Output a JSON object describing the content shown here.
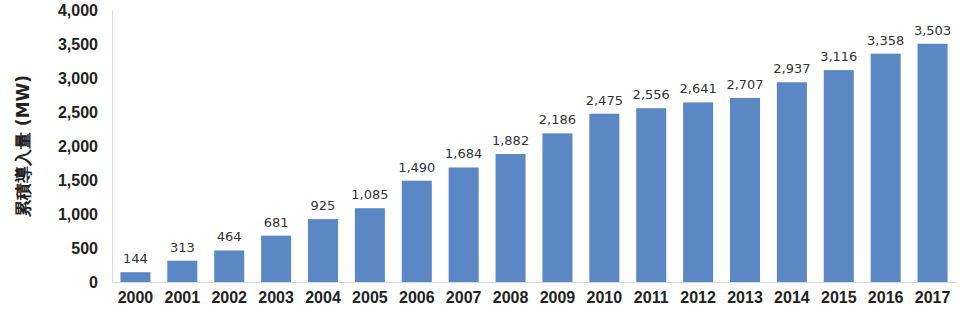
{
  "chart_data": {
    "type": "bar",
    "y_label": "累積導入量 (MW)",
    "categories": [
      "2000",
      "2001",
      "2002",
      "2003",
      "2004",
      "2005",
      "2006",
      "2007",
      "2008",
      "2009",
      "2010",
      "2011",
      "2012",
      "2013",
      "2014",
      "2015",
      "2016",
      "2017"
    ],
    "values": [
      144,
      313,
      464,
      681,
      925,
      1085,
      1490,
      1684,
      1882,
      2186,
      2475,
      2556,
      2641,
      2707,
      2937,
      3116,
      3358,
      3503
    ],
    "value_labels": [
      "144",
      "313",
      "464",
      "681",
      "925",
      "1,085",
      "1,490",
      "1,684",
      "1,882",
      "2,186",
      "2,475",
      "2,556",
      "2,641",
      "2,707",
      "2,937",
      "3,116",
      "3,358",
      "3,503"
    ],
    "color": "#5b88c4",
    "ylim": [
      0,
      4000
    ],
    "yticks": [
      0,
      500,
      {
        "value": 1000,
        "label": "1,000"
      },
      {
        "value": 1500,
        "label": "1,500"
      },
      {
        "value": 2000,
        "label": "2,000"
      },
      {
        "value": 2500,
        "label": "2,500"
      },
      {
        "value": 3000,
        "label": "3,000"
      },
      {
        "value": 3500,
        "label": "3,500"
      },
      {
        "value": 4000,
        "label": "4,000"
      }
    ],
    "grid": false,
    "data_labels": true
  }
}
